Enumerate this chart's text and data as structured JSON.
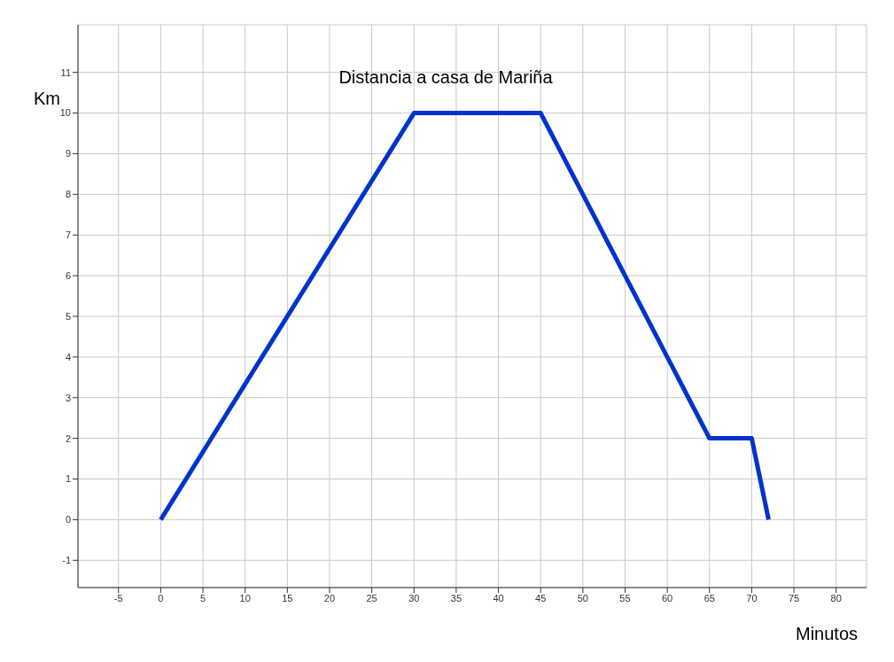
{
  "chart_data": {
    "type": "line",
    "title": "Distancia a casa de Mariña",
    "xlabel": "Minutos",
    "ylabel": "Km",
    "x": [
      0,
      30,
      45,
      65,
      70,
      72
    ],
    "series": [
      {
        "color": "#0033cc",
        "values": [
          0,
          10,
          10,
          2,
          2,
          0
        ]
      }
    ],
    "xlim": [
      -9.8,
      83.6
    ],
    "xticks": [
      -5,
      0,
      5,
      10,
      15,
      20,
      25,
      30,
      35,
      40,
      45,
      50,
      55,
      60,
      65,
      70,
      75,
      80
    ],
    "ylim": [
      -1.67,
      12.17
    ],
    "yticks": [
      -1,
      0,
      1,
      2,
      3,
      4,
      5,
      6,
      7,
      8,
      9,
      10,
      11
    ],
    "grid": true,
    "marker": "none",
    "line_style": "solid"
  }
}
